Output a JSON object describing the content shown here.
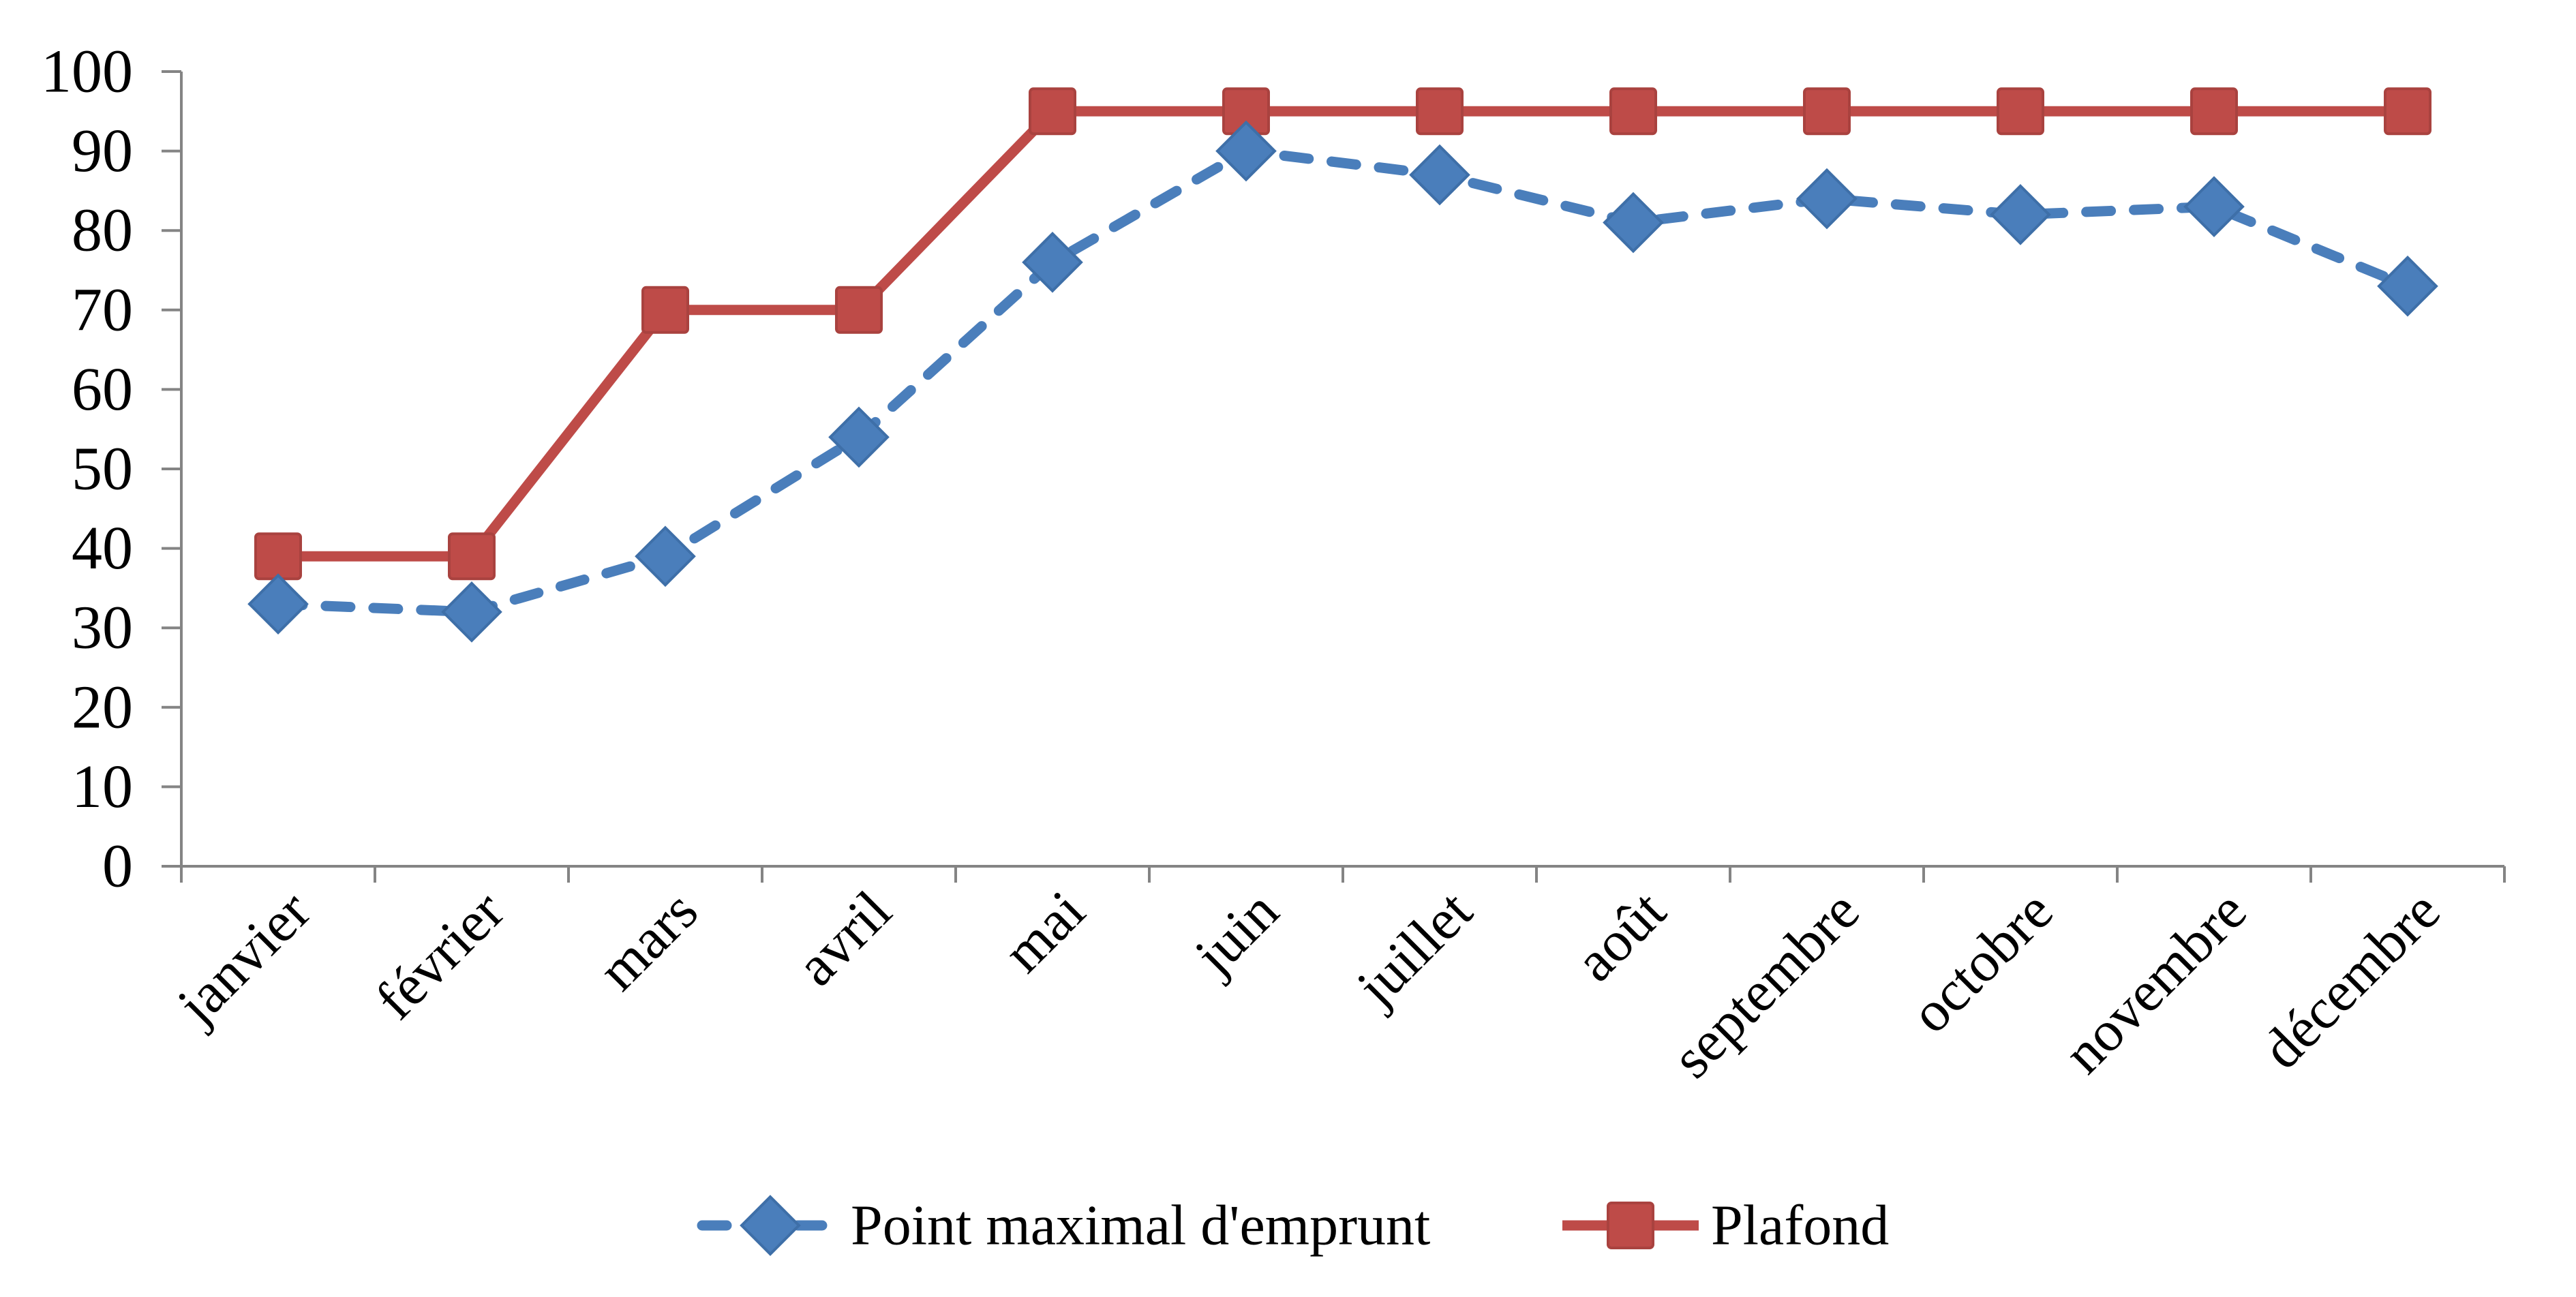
{
  "chart_data": {
    "type": "line",
    "title": "",
    "xlabel": "",
    "ylabel": "",
    "categories": [
      "janvier",
      "février",
      "mars",
      "avril",
      "mai",
      "juin",
      "juillet",
      "août",
      "septembre",
      "octobre",
      "novembre",
      "décembre"
    ],
    "series": [
      {
        "name": "Point maximal d'emprunt",
        "values": [
          33,
          32,
          39,
          54,
          76,
          90,
          87,
          81,
          84,
          82,
          83,
          73
        ],
        "color": "#4A7EBB",
        "marker_edge_color": "#3E6FA8",
        "line_style": "dashed",
        "marker": "diamond"
      },
      {
        "name": "Plafond",
        "values": [
          39,
          39,
          70,
          70,
          95,
          95,
          95,
          95,
          95,
          95,
          95,
          95
        ],
        "color": "#BE4B48",
        "marker_edge_color": "#A9423F",
        "line_style": "solid",
        "marker": "square"
      }
    ],
    "ylim": [
      0,
      100
    ],
    "ytick_step": 10,
    "ytick_labels": [
      "0",
      "10",
      "20",
      "30",
      "40",
      "50",
      "60",
      "70",
      "80",
      "90",
      "100"
    ],
    "grid": false,
    "legend_position": "bottom",
    "axis_color": "#848484",
    "text_color": "#000000",
    "background_color": "#FFFFFF"
  }
}
